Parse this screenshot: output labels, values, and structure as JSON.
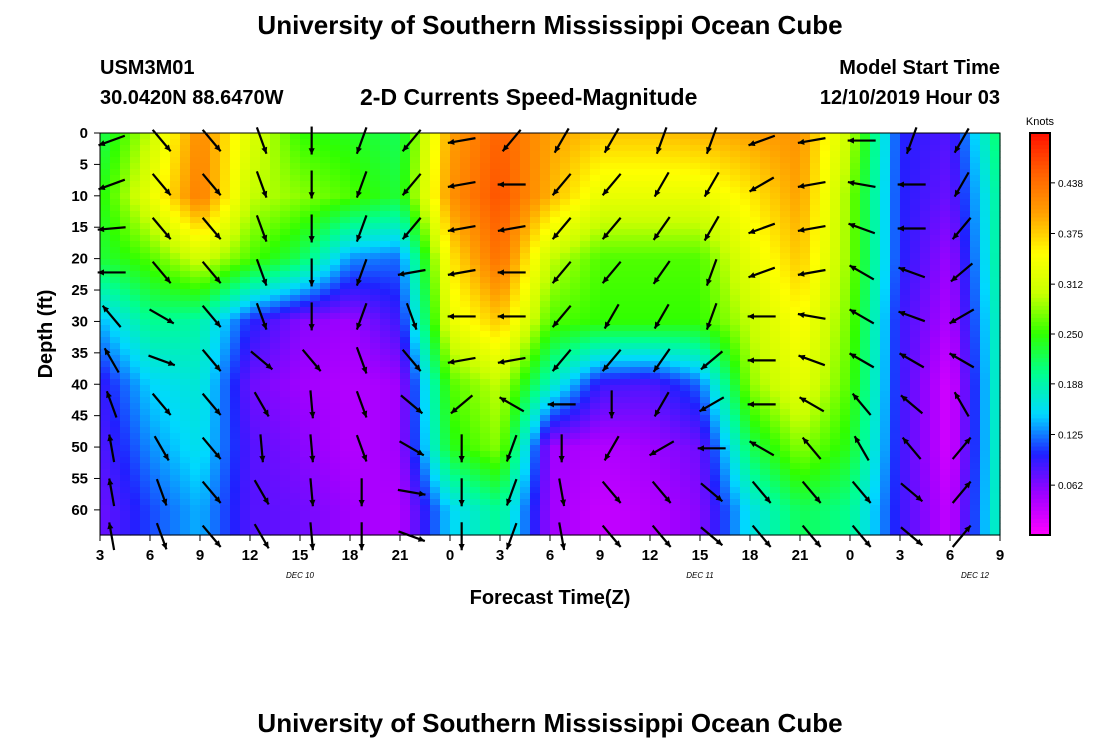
{
  "header": {
    "title": "University of Southern Mississippi Ocean Cube",
    "station_id": "USM3M01",
    "station_location": "30.0420N 88.6470W",
    "plot_title": "2-D Currents Speed-Magnitude",
    "model_label": "Model Start Time",
    "model_time": "12/10/2019 Hour 03"
  },
  "footer": {
    "title": "University of Southern Mississippi Ocean Cube"
  },
  "chart_data": {
    "type": "heatmap",
    "xlabel": "Forecast Time(Z)",
    "ylabel": "Depth (ft)",
    "x_tick_labels": [
      "3",
      "6",
      "9",
      "12",
      "15",
      "18",
      "21",
      "0",
      "3",
      "6",
      "9",
      "12",
      "15",
      "18",
      "21",
      "0",
      "3",
      "6",
      "9"
    ],
    "date_labels": [
      {
        "text": "DEC 10",
        "tick_index": 4
      },
      {
        "text": "DEC 11",
        "tick_index": 12
      },
      {
        "text": "DEC 12",
        "tick_index": 17.5
      }
    ],
    "y_ticks": [
      0,
      5,
      10,
      15,
      20,
      25,
      30,
      35,
      40,
      45,
      50,
      55,
      60
    ],
    "ylim": [
      0,
      64
    ],
    "colorbar": {
      "title": "Knots",
      "tick_labels": [
        "0.438",
        "0.375",
        "0.312",
        "0.250",
        "0.188",
        "0.125",
        "0.062"
      ],
      "range": [
        0,
        0.5
      ],
      "colors": [
        "#ff00ff",
        "#a000ff",
        "#2020ff",
        "#00d8ff",
        "#00ff90",
        "#30ff00",
        "#c8ff00",
        "#ffff00",
        "#ffa000",
        "#ff6000",
        "#ff1000"
      ]
    },
    "speed_knots_by_hour": {
      "hours": [
        3,
        6,
        9,
        12,
        15,
        18,
        21,
        24,
        27,
        30,
        33,
        36,
        39,
        42,
        45,
        48,
        51,
        54,
        57
      ],
      "depths_ft": [
        0,
        10,
        20,
        30,
        40,
        50,
        60
      ],
      "values": [
        [
          0.22,
          0.24,
          0.23,
          0.14,
          0.09,
          0.08,
          0.07
        ],
        [
          0.3,
          0.33,
          0.26,
          0.2,
          0.15,
          0.13,
          0.11
        ],
        [
          0.42,
          0.43,
          0.31,
          0.19,
          0.17,
          0.16,
          0.14
        ],
        [
          0.32,
          0.3,
          0.26,
          0.1,
          0.07,
          0.08,
          0.08
        ],
        [
          0.25,
          0.28,
          0.22,
          0.06,
          0.05,
          0.06,
          0.07
        ],
        [
          0.24,
          0.26,
          0.13,
          0.05,
          0.04,
          0.04,
          0.05
        ],
        [
          0.22,
          0.23,
          0.12,
          0.09,
          0.05,
          0.05,
          0.04
        ],
        [
          0.4,
          0.41,
          0.36,
          0.33,
          0.26,
          0.24,
          0.15
        ],
        [
          0.45,
          0.46,
          0.44,
          0.38,
          0.3,
          0.28,
          0.2
        ],
        [
          0.4,
          0.39,
          0.3,
          0.26,
          0.18,
          0.05,
          0.05
        ],
        [
          0.38,
          0.33,
          0.26,
          0.25,
          0.09,
          0.04,
          0.03
        ],
        [
          0.38,
          0.33,
          0.26,
          0.25,
          0.08,
          0.05,
          0.04
        ],
        [
          0.39,
          0.33,
          0.26,
          0.25,
          0.12,
          0.07,
          0.06
        ],
        [
          0.4,
          0.36,
          0.33,
          0.3,
          0.28,
          0.22,
          0.16
        ],
        [
          0.41,
          0.4,
          0.38,
          0.35,
          0.33,
          0.28,
          0.22
        ],
        [
          0.3,
          0.28,
          0.28,
          0.27,
          0.26,
          0.24,
          0.2
        ],
        [
          0.1,
          0.1,
          0.1,
          0.09,
          0.09,
          0.09,
          0.09
        ],
        [
          0.08,
          0.07,
          0.05,
          0.04,
          0.02,
          0.02,
          0.03
        ],
        [
          0.22,
          0.2,
          0.2,
          0.19,
          0.19,
          0.19,
          0.19
        ]
      ]
    },
    "vectors": {
      "hours": [
        3,
        6,
        9,
        12,
        15,
        18,
        21,
        24,
        27,
        30,
        33,
        36,
        39,
        42,
        45,
        48,
        51,
        54
      ],
      "depths_ft": [
        0,
        7,
        14,
        21,
        28,
        35,
        42,
        49,
        56,
        63
      ],
      "directions_deg": [
        [
          250,
          140,
          140,
          160,
          180,
          200,
          220,
          260,
          220,
          210,
          210,
          200,
          200,
          250,
          260,
          270,
          200,
          210
        ],
        [
          250,
          140,
          140,
          160,
          180,
          200,
          220,
          260,
          270,
          220,
          220,
          210,
          210,
          240,
          260,
          280,
          270,
          210
        ],
        [
          265,
          140,
          140,
          160,
          180,
          200,
          220,
          260,
          260,
          220,
          220,
          215,
          210,
          250,
          260,
          290,
          270,
          220
        ],
        [
          270,
          140,
          140,
          160,
          180,
          200,
          260,
          260,
          270,
          220,
          220,
          215,
          200,
          250,
          260,
          300,
          290,
          230
        ],
        [
          320,
          120,
          140,
          160,
          180,
          200,
          160,
          270,
          270,
          220,
          210,
          210,
          200,
          270,
          280,
          300,
          290,
          240
        ],
        [
          330,
          110,
          140,
          130,
          140,
          160,
          140,
          260,
          260,
          220,
          220,
          215,
          230,
          270,
          290,
          300,
          300,
          300
        ],
        [
          340,
          140,
          140,
          150,
          175,
          160,
          130,
          230,
          300,
          270,
          180,
          210,
          240,
          270,
          300,
          320,
          310,
          330
        ],
        [
          350,
          150,
          140,
          175,
          175,
          160,
          120,
          180,
          200,
          180,
          210,
          240,
          270,
          300,
          320,
          330,
          320,
          40
        ],
        [
          350,
          160,
          140,
          150,
          175,
          180,
          100,
          180,
          200,
          170,
          140,
          140,
          130,
          140,
          140,
          140,
          130,
          40
        ],
        [
          350,
          160,
          140,
          150,
          175,
          180,
          110,
          180,
          200,
          170,
          140,
          140,
          130,
          140,
          140,
          140,
          130,
          40
        ]
      ]
    }
  }
}
